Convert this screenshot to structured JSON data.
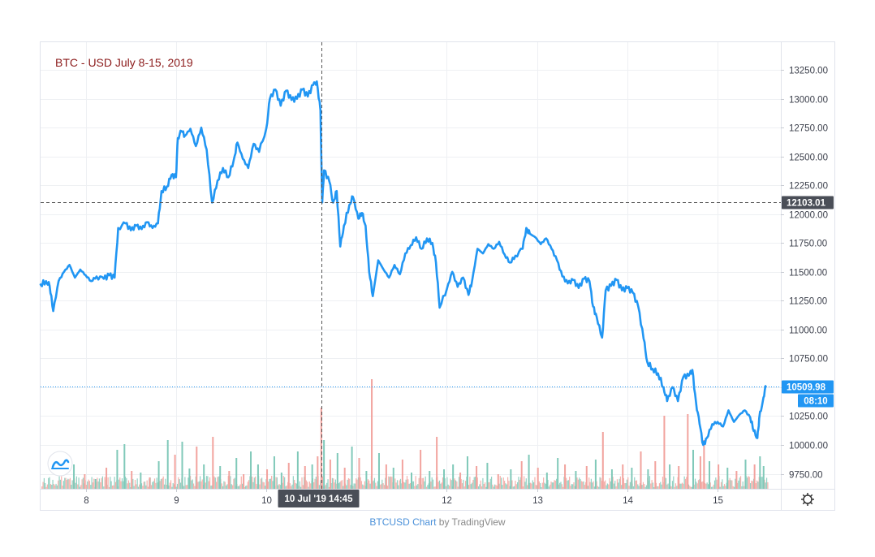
{
  "chart_data": {
    "type": "line",
    "title": "BTC - USD July 8-15, 2019",
    "x_tick_labels": [
      "8",
      "9",
      "10",
      "12",
      "13",
      "14",
      "15"
    ],
    "x_tick_days": [
      8,
      9,
      10,
      12,
      13,
      14,
      15
    ],
    "y_tick_labels": [
      "13250.00",
      "13000.00",
      "12750.00",
      "12500.00",
      "12250.00",
      "12000.00",
      "11750.00",
      "11500.00",
      "11250.00",
      "11000.00",
      "10750.00",
      "10500.00",
      "10250.00",
      "10000.00",
      "9750.00"
    ],
    "ylim": [
      9620,
      13490
    ],
    "xlim_days": [
      7.5,
      15.7
    ],
    "grid": true,
    "series": [
      {
        "color": "#2196f3",
        "points": [
          [
            7.5,
            11390
          ],
          [
            7.56,
            11420
          ],
          [
            7.6,
            11380
          ],
          [
            7.64,
            11160
          ],
          [
            7.7,
            11420
          ],
          [
            7.76,
            11500
          ],
          [
            7.82,
            11560
          ],
          [
            7.88,
            11450
          ],
          [
            7.94,
            11520
          ],
          [
            8.0,
            11470
          ],
          [
            8.06,
            11420
          ],
          [
            8.12,
            11460
          ],
          [
            8.2,
            11440
          ],
          [
            8.26,
            11470
          ],
          [
            8.32,
            11450
          ],
          [
            8.36,
            11880
          ],
          [
            8.44,
            11920
          ],
          [
            8.5,
            11860
          ],
          [
            8.56,
            11900
          ],
          [
            8.62,
            11870
          ],
          [
            8.68,
            11930
          ],
          [
            8.74,
            11880
          ],
          [
            8.8,
            11920
          ],
          [
            8.84,
            12200
          ],
          [
            8.9,
            12240
          ],
          [
            8.95,
            12340
          ],
          [
            9.0,
            12320
          ],
          [
            9.02,
            12660
          ],
          [
            9.06,
            12720
          ],
          [
            9.1,
            12680
          ],
          [
            9.16,
            12740
          ],
          [
            9.22,
            12590
          ],
          [
            9.28,
            12750
          ],
          [
            9.34,
            12560
          ],
          [
            9.4,
            12100
          ],
          [
            9.46,
            12290
          ],
          [
            9.52,
            12400
          ],
          [
            9.58,
            12320
          ],
          [
            9.64,
            12470
          ],
          [
            9.68,
            12620
          ],
          [
            9.74,
            12480
          ],
          [
            9.8,
            12400
          ],
          [
            9.86,
            12610
          ],
          [
            9.92,
            12540
          ],
          [
            10.0,
            12740
          ],
          [
            10.04,
            13000
          ],
          [
            10.1,
            13080
          ],
          [
            10.16,
            12940
          ],
          [
            10.22,
            13070
          ],
          [
            10.28,
            12990
          ],
          [
            10.34,
            13000
          ],
          [
            10.4,
            13080
          ],
          [
            10.46,
            13020
          ],
          [
            10.52,
            13120
          ],
          [
            10.56,
            13150
          ],
          [
            10.6,
            12900
          ],
          [
            10.62,
            12102
          ],
          [
            10.64,
            12380
          ],
          [
            10.7,
            12280
          ],
          [
            10.74,
            12100
          ],
          [
            10.78,
            12200
          ],
          [
            10.82,
            11720
          ],
          [
            10.86,
            11900
          ],
          [
            10.92,
            12080
          ],
          [
            10.96,
            12150
          ],
          [
            11.02,
            11960
          ],
          [
            11.06,
            12010
          ],
          [
            11.1,
            11900
          ],
          [
            11.14,
            11500
          ],
          [
            11.18,
            11290
          ],
          [
            11.24,
            11600
          ],
          [
            11.3,
            11520
          ],
          [
            11.36,
            11450
          ],
          [
            11.42,
            11560
          ],
          [
            11.48,
            11480
          ],
          [
            11.54,
            11660
          ],
          [
            11.6,
            11730
          ],
          [
            11.66,
            11800
          ],
          [
            11.72,
            11700
          ],
          [
            11.78,
            11790
          ],
          [
            11.84,
            11750
          ],
          [
            11.88,
            11580
          ],
          [
            11.92,
            11190
          ],
          [
            12.0,
            11350
          ],
          [
            12.06,
            11500
          ],
          [
            12.12,
            11370
          ],
          [
            12.18,
            11450
          ],
          [
            12.24,
            11300
          ],
          [
            12.28,
            11420
          ],
          [
            12.34,
            11700
          ],
          [
            12.4,
            11660
          ],
          [
            12.46,
            11740
          ],
          [
            12.52,
            11700
          ],
          [
            12.58,
            11760
          ],
          [
            12.64,
            11650
          ],
          [
            12.7,
            11580
          ],
          [
            12.76,
            11640
          ],
          [
            12.84,
            11700
          ],
          [
            12.88,
            11880
          ],
          [
            12.92,
            11830
          ],
          [
            12.98,
            11800
          ],
          [
            13.04,
            11740
          ],
          [
            13.1,
            11790
          ],
          [
            13.16,
            11700
          ],
          [
            13.22,
            11600
          ],
          [
            13.28,
            11460
          ],
          [
            13.34,
            11400
          ],
          [
            13.4,
            11430
          ],
          [
            13.46,
            11360
          ],
          [
            13.52,
            11440
          ],
          [
            13.58,
            11420
          ],
          [
            13.62,
            11200
          ],
          [
            13.66,
            11110
          ],
          [
            13.72,
            10930
          ],
          [
            13.76,
            11340
          ],
          [
            13.82,
            11380
          ],
          [
            13.88,
            11430
          ],
          [
            13.94,
            11340
          ],
          [
            14.0,
            11360
          ],
          [
            14.06,
            11320
          ],
          [
            14.12,
            11200
          ],
          [
            14.18,
            10920
          ],
          [
            14.22,
            10720
          ],
          [
            14.28,
            10660
          ],
          [
            14.34,
            10620
          ],
          [
            14.4,
            10500
          ],
          [
            14.44,
            10380
          ],
          [
            14.5,
            10500
          ],
          [
            14.56,
            10380
          ],
          [
            14.62,
            10590
          ],
          [
            14.68,
            10600
          ],
          [
            14.72,
            10650
          ],
          [
            14.76,
            10370
          ],
          [
            14.8,
            10180
          ],
          [
            14.84,
            10000
          ],
          [
            14.88,
            10060
          ],
          [
            14.94,
            10180
          ],
          [
            15.0,
            10200
          ],
          [
            15.06,
            10160
          ],
          [
            15.12,
            10300
          ],
          [
            15.18,
            10200
          ],
          [
            15.24,
            10260
          ],
          [
            15.3,
            10300
          ],
          [
            15.36,
            10240
          ],
          [
            15.4,
            10120
          ],
          [
            15.44,
            10060
          ],
          [
            15.46,
            10230
          ],
          [
            15.5,
            10380
          ],
          [
            15.53,
            10510
          ]
        ]
      }
    ],
    "volume": {
      "bars": [
        [
          7.86,
          30,
          "up"
        ],
        [
          7.98,
          18,
          "down"
        ],
        [
          8.1,
          12,
          "up"
        ],
        [
          8.22,
          26,
          "down"
        ],
        [
          8.34,
          48,
          "up"
        ],
        [
          8.42,
          55,
          "up"
        ],
        [
          8.5,
          22,
          "down"
        ],
        [
          8.6,
          20,
          "up"
        ],
        [
          8.7,
          14,
          "down"
        ],
        [
          8.8,
          34,
          "up"
        ],
        [
          8.9,
          60,
          "up"
        ],
        [
          8.98,
          42,
          "down"
        ],
        [
          9.06,
          58,
          "up"
        ],
        [
          9.14,
          25,
          "up"
        ],
        [
          9.22,
          52,
          "down"
        ],
        [
          9.3,
          30,
          "up"
        ],
        [
          9.4,
          64,
          "down"
        ],
        [
          9.48,
          28,
          "up"
        ],
        [
          9.58,
          22,
          "down"
        ],
        [
          9.66,
          38,
          "up"
        ],
        [
          9.74,
          18,
          "down"
        ],
        [
          9.82,
          46,
          "up"
        ],
        [
          9.9,
          30,
          "up"
        ],
        [
          10.0,
          24,
          "down"
        ],
        [
          10.08,
          40,
          "up"
        ],
        [
          10.16,
          20,
          "up"
        ],
        [
          10.24,
          32,
          "down"
        ],
        [
          10.34,
          46,
          "up"
        ],
        [
          10.42,
          28,
          "down"
        ],
        [
          10.5,
          30,
          "up"
        ],
        [
          10.56,
          40,
          "down"
        ],
        [
          10.6,
          100,
          "down"
        ],
        [
          10.63,
          60,
          "up"
        ],
        [
          10.7,
          36,
          "down"
        ],
        [
          10.78,
          44,
          "up"
        ],
        [
          10.86,
          26,
          "down"
        ],
        [
          10.94,
          52,
          "up"
        ],
        [
          11.02,
          38,
          "down"
        ],
        [
          11.1,
          22,
          "up"
        ],
        [
          11.16,
          135,
          "down"
        ],
        [
          11.24,
          44,
          "up"
        ],
        [
          11.32,
          30,
          "down"
        ],
        [
          11.4,
          26,
          "up"
        ],
        [
          11.5,
          36,
          "down"
        ],
        [
          11.6,
          20,
          "up"
        ],
        [
          11.7,
          48,
          "down"
        ],
        [
          11.8,
          22,
          "up"
        ],
        [
          11.88,
          64,
          "down"
        ],
        [
          11.96,
          24,
          "up"
        ],
        [
          12.06,
          30,
          "up"
        ],
        [
          12.14,
          20,
          "down"
        ],
        [
          12.22,
          40,
          "up"
        ],
        [
          12.32,
          28,
          "down"
        ],
        [
          12.44,
          32,
          "up"
        ],
        [
          12.56,
          18,
          "down"
        ],
        [
          12.7,
          24,
          "up"
        ],
        [
          12.82,
          34,
          "down"
        ],
        [
          12.9,
          42,
          "up"
        ],
        [
          13.0,
          26,
          "down"
        ],
        [
          13.1,
          20,
          "up"
        ],
        [
          13.22,
          38,
          "up"
        ],
        [
          13.3,
          30,
          "down"
        ],
        [
          13.42,
          22,
          "up"
        ],
        [
          13.54,
          28,
          "down"
        ],
        [
          13.64,
          36,
          "up"
        ],
        [
          13.72,
          70,
          "down"
        ],
        [
          13.82,
          24,
          "up"
        ],
        [
          13.94,
          30,
          "down"
        ],
        [
          14.04,
          26,
          "up"
        ],
        [
          14.14,
          46,
          "down"
        ],
        [
          14.22,
          24,
          "up"
        ],
        [
          14.3,
          34,
          "down"
        ],
        [
          14.4,
          90,
          "down"
        ],
        [
          14.46,
          30,
          "up"
        ],
        [
          14.56,
          28,
          "down"
        ],
        [
          14.66,
          92,
          "down"
        ],
        [
          14.72,
          48,
          "up"
        ],
        [
          14.8,
          40,
          "down"
        ],
        [
          14.84,
          60,
          "down"
        ],
        [
          14.9,
          34,
          "up"
        ],
        [
          15.0,
          30,
          "down"
        ],
        [
          15.1,
          26,
          "up"
        ],
        [
          15.2,
          22,
          "down"
        ],
        [
          15.3,
          36,
          "up"
        ],
        [
          15.4,
          30,
          "down"
        ],
        [
          15.46,
          40,
          "up"
        ],
        [
          15.5,
          28,
          "up"
        ]
      ]
    },
    "crosshair": {
      "price_label": "12103.01",
      "price_value": 12103.01,
      "time_label": "10 Jul '19  14:45",
      "time_value": 10.61
    },
    "last_price": {
      "label": "10509.98",
      "value": 10509.98,
      "countdown": "08:10"
    },
    "colors": {
      "line": "#2196f3",
      "title": "#8b1a1a",
      "grid": "#eef0f3",
      "volume_up": "#80c9b9",
      "volume_down": "#f2a39e",
      "price_badge": "#2196f3",
      "crosshair_badge": "#4a4e57"
    }
  },
  "footer": {
    "symbol_link": "BTCUSD Chart",
    "by_text": "by TradingView"
  },
  "icons": {
    "logo": "tradingview-logo-icon",
    "settings": "gear-icon"
  }
}
